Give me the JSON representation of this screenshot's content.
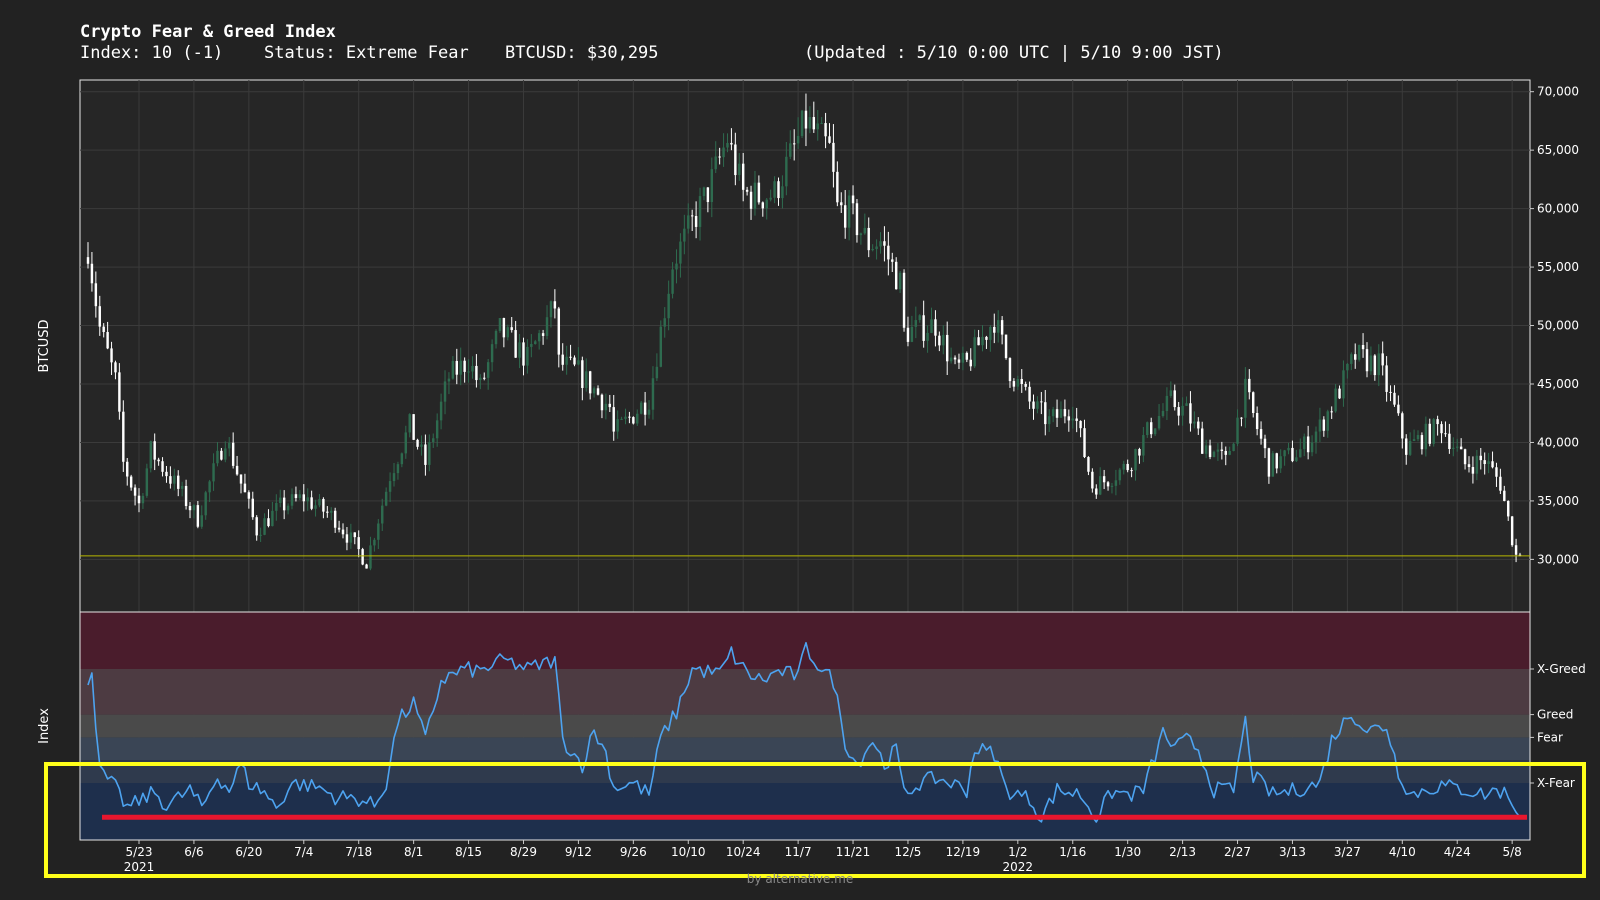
{
  "header": {
    "title": "Crypto Fear & Greed Index",
    "index_text": "Index: 10 (-1)",
    "status_text": "Status: Extreme Fear",
    "price_text": "BTCUSD: $30,295",
    "updated_text": "(Updated : 5/10 0:00 UTC | 5/10 9:00 JST)"
  },
  "credit": "by alternative.me",
  "colors": {
    "background": "#222222",
    "plot_bg": "#262626",
    "candle_up": "#2e6b4f",
    "candle_down": "#ffffff",
    "index_line": "#4da3f0",
    "price_marker_line": "#b8b800",
    "highlight_box": "#ffff1a",
    "red_marker": "#e8162e",
    "zone_extreme_greed": "#4a1c2c",
    "zone_greed": "#4d3b42",
    "zone_neutral": "#4a4a4a",
    "zone_fear": "#3a4555",
    "zone_mid": "#2f3a4d",
    "zone_extreme_fear": "#1e2f4c"
  },
  "chart_data": [
    {
      "type": "candlestick",
      "ylabel": "BTCUSD",
      "ylim": [
        25500,
        71000
      ],
      "yticks": [
        30000,
        35000,
        40000,
        45000,
        50000,
        55000,
        60000,
        65000,
        70000
      ],
      "ytick_labels": [
        "30,000",
        "35,000",
        "40,000",
        "45,000",
        "50,000",
        "55,000",
        "60,000",
        "65,000",
        "70,000"
      ],
      "current_price": 30295,
      "date_range": [
        "2021-05-10",
        "2022-05-10"
      ],
      "close_anchors": [
        [
          "2021-05-10",
          56700
        ],
        [
          "2021-05-13",
          49800
        ],
        [
          "2021-05-17",
          45300
        ],
        [
          "2021-05-19",
          38200
        ],
        [
          "2021-05-23",
          34700
        ],
        [
          "2021-05-26",
          39300
        ],
        [
          "2021-06-01",
          36500
        ],
        [
          "2021-06-07",
          33500
        ],
        [
          "2021-06-14",
          40500
        ],
        [
          "2021-06-22",
          32500
        ],
        [
          "2021-06-28",
          34500
        ],
        [
          "2021-07-04",
          35300
        ],
        [
          "2021-07-12",
          33500
        ],
        [
          "2021-07-20",
          29800
        ],
        [
          "2021-07-26",
          37200
        ],
        [
          "2021-07-31",
          41400
        ],
        [
          "2021-08-04",
          38200
        ],
        [
          "2021-08-10",
          45600
        ],
        [
          "2021-08-15",
          47000
        ],
        [
          "2021-08-18",
          44700
        ],
        [
          "2021-08-23",
          49600
        ],
        [
          "2021-08-30",
          47100
        ],
        [
          "2021-09-06",
          51700
        ],
        [
          "2021-09-07",
          46800
        ],
        [
          "2021-09-12",
          46000
        ],
        [
          "2021-09-20",
          43000
        ],
        [
          "2021-09-21",
          40700
        ],
        [
          "2021-09-30",
          43800
        ],
        [
          "2021-10-06",
          55300
        ],
        [
          "2021-10-15",
          61500
        ],
        [
          "2021-10-20",
          66000
        ],
        [
          "2021-10-24",
          61300
        ],
        [
          "2021-10-28",
          61000
        ],
        [
          "2021-11-01",
          61300
        ],
        [
          "2021-11-09",
          67500
        ],
        [
          "2021-11-15",
          65000
        ],
        [
          "2021-11-17",
          60000
        ],
        [
          "2021-11-20",
          59700
        ],
        [
          "2021-11-25",
          57000
        ],
        [
          "2021-11-28",
          57200
        ],
        [
          "2021-12-03",
          53600
        ],
        [
          "2021-12-04",
          49400
        ],
        [
          "2021-12-12",
          50100
        ],
        [
          "2021-12-17",
          46200
        ],
        [
          "2021-12-20",
          46700
        ],
        [
          "2021-12-27",
          50600
        ],
        [
          "2021-12-31",
          46200
        ],
        [
          "2022-01-05",
          43400
        ],
        [
          "2022-01-10",
          41800
        ],
        [
          "2022-01-16",
          43100
        ],
        [
          "2022-01-21",
          36300
        ],
        [
          "2022-01-24",
          36700
        ],
        [
          "2022-01-30",
          38000
        ],
        [
          "2022-02-05",
          41400
        ],
        [
          "2022-02-10",
          43500
        ],
        [
          "2022-02-14",
          42600
        ],
        [
          "2022-02-18",
          40000
        ],
        [
          "2022-02-24",
          38300
        ],
        [
          "2022-03-01",
          44400
        ],
        [
          "2022-03-07",
          38000
        ],
        [
          "2022-03-15",
          39300
        ],
        [
          "2022-03-20",
          41300
        ],
        [
          "2022-03-25",
          44500
        ],
        [
          "2022-03-29",
          47400
        ],
        [
          "2022-04-04",
          46600
        ],
        [
          "2022-04-08",
          42800
        ],
        [
          "2022-04-11",
          39500
        ],
        [
          "2022-04-20",
          41500
        ],
        [
          "2022-04-26",
          38100
        ],
        [
          "2022-05-01",
          38500
        ],
        [
          "2022-05-05",
          36500
        ],
        [
          "2022-05-09",
          30300
        ],
        [
          "2022-05-10",
          30295
        ]
      ]
    },
    {
      "type": "line",
      "ylabel": "Index",
      "ylim": [
        0,
        100
      ],
      "yticks": [
        25,
        45,
        55,
        75
      ],
      "ytick_labels": [
        "X-Fear",
        "Fear",
        "Greed",
        "X-Greed"
      ],
      "zones": [
        [
          0,
          25
        ],
        [
          25,
          35
        ],
        [
          35,
          45
        ],
        [
          45,
          55
        ],
        [
          55,
          75
        ],
        [
          75,
          100
        ]
      ],
      "current_value": 10,
      "anchors": [
        [
          "2021-05-10",
          68
        ],
        [
          "2021-05-11",
          74
        ],
        [
          "2021-05-13",
          30
        ],
        [
          "2021-05-17",
          23
        ],
        [
          "2021-05-20",
          14
        ],
        [
          "2021-05-24",
          18
        ],
        [
          "2021-05-27",
          21
        ],
        [
          "2021-05-30",
          15
        ],
        [
          "2021-06-05",
          22
        ],
        [
          "2021-06-08",
          14
        ],
        [
          "2021-06-12",
          28
        ],
        [
          "2021-06-15",
          22
        ],
        [
          "2021-06-18",
          33
        ],
        [
          "2021-06-20",
          25
        ],
        [
          "2021-06-24",
          21
        ],
        [
          "2021-06-27",
          14
        ],
        [
          "2021-07-01",
          25
        ],
        [
          "2021-07-08",
          23
        ],
        [
          "2021-07-12",
          19
        ],
        [
          "2021-07-18",
          18
        ],
        [
          "2021-07-22",
          15
        ],
        [
          "2021-07-25",
          25
        ],
        [
          "2021-07-28",
          52
        ],
        [
          "2021-08-01",
          60
        ],
        [
          "2021-08-04",
          44
        ],
        [
          "2021-08-08",
          70
        ],
        [
          "2021-08-14",
          75
        ],
        [
          "2021-08-18",
          74
        ],
        [
          "2021-08-24",
          79
        ],
        [
          "2021-08-30",
          75
        ],
        [
          "2021-09-06",
          79
        ],
        [
          "2021-09-08",
          44
        ],
        [
          "2021-09-13",
          33
        ],
        [
          "2021-09-16",
          48
        ],
        [
          "2021-09-19",
          38
        ],
        [
          "2021-09-21",
          23
        ],
        [
          "2021-09-26",
          25
        ],
        [
          "2021-09-30",
          20
        ],
        [
          "2021-10-03",
          45
        ],
        [
          "2021-10-07",
          56
        ],
        [
          "2021-10-11",
          75
        ],
        [
          "2021-10-18",
          73
        ],
        [
          "2021-10-21",
          82
        ],
        [
          "2021-10-25",
          73
        ],
        [
          "2021-10-29",
          70
        ],
        [
          "2021-11-02",
          74
        ],
        [
          "2021-11-07",
          72
        ],
        [
          "2021-11-09",
          84
        ],
        [
          "2021-11-13",
          75
        ],
        [
          "2021-11-16",
          70
        ],
        [
          "2021-11-19",
          43
        ],
        [
          "2021-11-22",
          33
        ],
        [
          "2021-11-26",
          44
        ],
        [
          "2021-11-29",
          33
        ],
        [
          "2021-12-02",
          40
        ],
        [
          "2021-12-04",
          20
        ],
        [
          "2021-12-08",
          25
        ],
        [
          "2021-12-12",
          27
        ],
        [
          "2021-12-16",
          25
        ],
        [
          "2021-12-20",
          22
        ],
        [
          "2021-12-22",
          40
        ],
        [
          "2021-12-27",
          38
        ],
        [
          "2021-12-30",
          22
        ],
        [
          "2022-01-05",
          18
        ],
        [
          "2022-01-08",
          10
        ],
        [
          "2022-01-12",
          22
        ],
        [
          "2022-01-18",
          20
        ],
        [
          "2022-01-22",
          10
        ],
        [
          "2022-01-26",
          21
        ],
        [
          "2022-01-31",
          20
        ],
        [
          "2022-02-03",
          22
        ],
        [
          "2022-02-08",
          47
        ],
        [
          "2022-02-11",
          40
        ],
        [
          "2022-02-14",
          44
        ],
        [
          "2022-02-17",
          40
        ],
        [
          "2022-02-21",
          22
        ],
        [
          "2022-02-26",
          22
        ],
        [
          "2022-03-01",
          52
        ],
        [
          "2022-03-03",
          28
        ],
        [
          "2022-03-08",
          20
        ],
        [
          "2022-03-14",
          22
        ],
        [
          "2022-03-20",
          25
        ],
        [
          "2022-03-23",
          44
        ],
        [
          "2022-03-28",
          56
        ],
        [
          "2022-04-01",
          48
        ],
        [
          "2022-04-06",
          50
        ],
        [
          "2022-04-09",
          30
        ],
        [
          "2022-04-12",
          20
        ],
        [
          "2022-04-20",
          24
        ],
        [
          "2022-04-26",
          22
        ],
        [
          "2022-05-01",
          20
        ],
        [
          "2022-05-04",
          22
        ],
        [
          "2022-05-07",
          20
        ],
        [
          "2022-05-10",
          10
        ]
      ]
    }
  ],
  "x_axis": {
    "tick_labels": [
      [
        "2021-05-23",
        "5/23"
      ],
      [
        "2021-06-06",
        "6/6"
      ],
      [
        "2021-06-20",
        "6/20"
      ],
      [
        "2021-07-04",
        "7/4"
      ],
      [
        "2021-07-18",
        "7/18"
      ],
      [
        "2021-08-01",
        "8/1"
      ],
      [
        "2021-08-15",
        "8/15"
      ],
      [
        "2021-08-29",
        "8/29"
      ],
      [
        "2021-09-12",
        "9/12"
      ],
      [
        "2021-09-26",
        "9/26"
      ],
      [
        "2021-10-10",
        "10/10"
      ],
      [
        "2021-10-24",
        "10/24"
      ],
      [
        "2021-11-07",
        "11/7"
      ],
      [
        "2021-11-21",
        "11/21"
      ],
      [
        "2021-12-05",
        "12/5"
      ],
      [
        "2021-12-19",
        "12/19"
      ],
      [
        "2022-01-02",
        "1/2"
      ],
      [
        "2022-01-16",
        "1/16"
      ],
      [
        "2022-01-30",
        "1/30"
      ],
      [
        "2022-02-13",
        "2/13"
      ],
      [
        "2022-02-27",
        "2/27"
      ],
      [
        "2022-03-13",
        "3/13"
      ],
      [
        "2022-03-27",
        "3/27"
      ],
      [
        "2022-04-10",
        "4/10"
      ],
      [
        "2022-04-24",
        "4/24"
      ],
      [
        "2022-05-08",
        "5/8"
      ]
    ],
    "year_labels": [
      [
        "2021-05-23",
        "2021"
      ],
      [
        "2022-01-02",
        "2022"
      ]
    ]
  },
  "annotations": {
    "highlight_box": "yellow rectangle around the Extreme Fear band and x-axis labels",
    "red_line_index_level": 10
  }
}
